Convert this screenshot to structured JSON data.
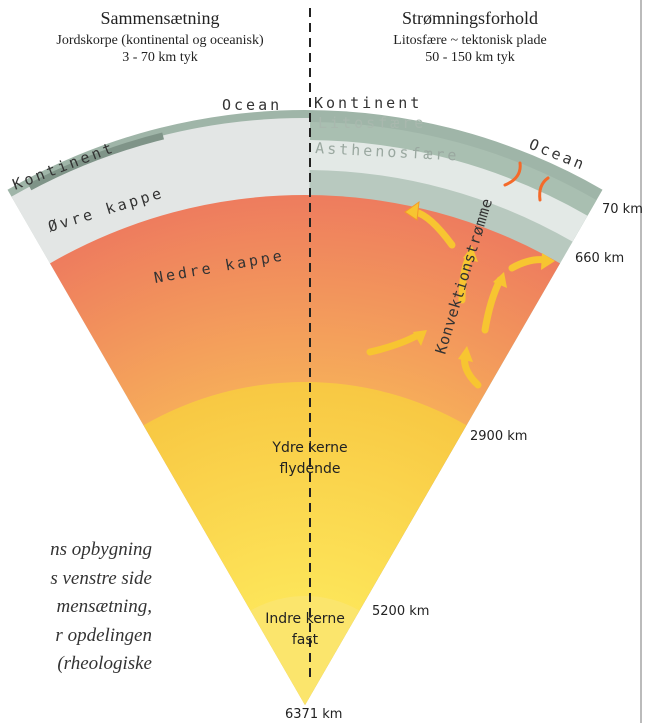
{
  "header": {
    "left": {
      "title": "Sammensætning",
      "line1": "Jordskorpe (kontinental og oceanisk)",
      "line2": "3 - 70 km tyk"
    },
    "right": {
      "title": "Strømningsforhold",
      "line1": "Litosfære ~ tektonisk plade",
      "line2": "50 - 150 km tyk"
    }
  },
  "labels": {
    "ocean_left": "Ocean",
    "kontinent_right": "Kontinent",
    "kontinent_left": "Kontinent",
    "litosfaere": "Litosfære",
    "asthenosfaere": "Asthenosfære",
    "ocean_right": "Ocean",
    "ovre_kappe": "Øvre kappe",
    "nedre_kappe": "Nedre kappe",
    "konvektion": "Konvektionstrømme",
    "ydre_kerne": "Ydre kerne",
    "ydre_state": "flydende",
    "indre_kerne": "Indre kerne",
    "indre_state": "fast"
  },
  "depths": [
    "70 km",
    "660 km",
    "2900 km",
    "5200 km",
    "6371 km"
  ],
  "caption": [
    "ns opbygning",
    "s venstre side",
    "mensætning,",
    "r opdelingen",
    "(rheologiske"
  ]
}
